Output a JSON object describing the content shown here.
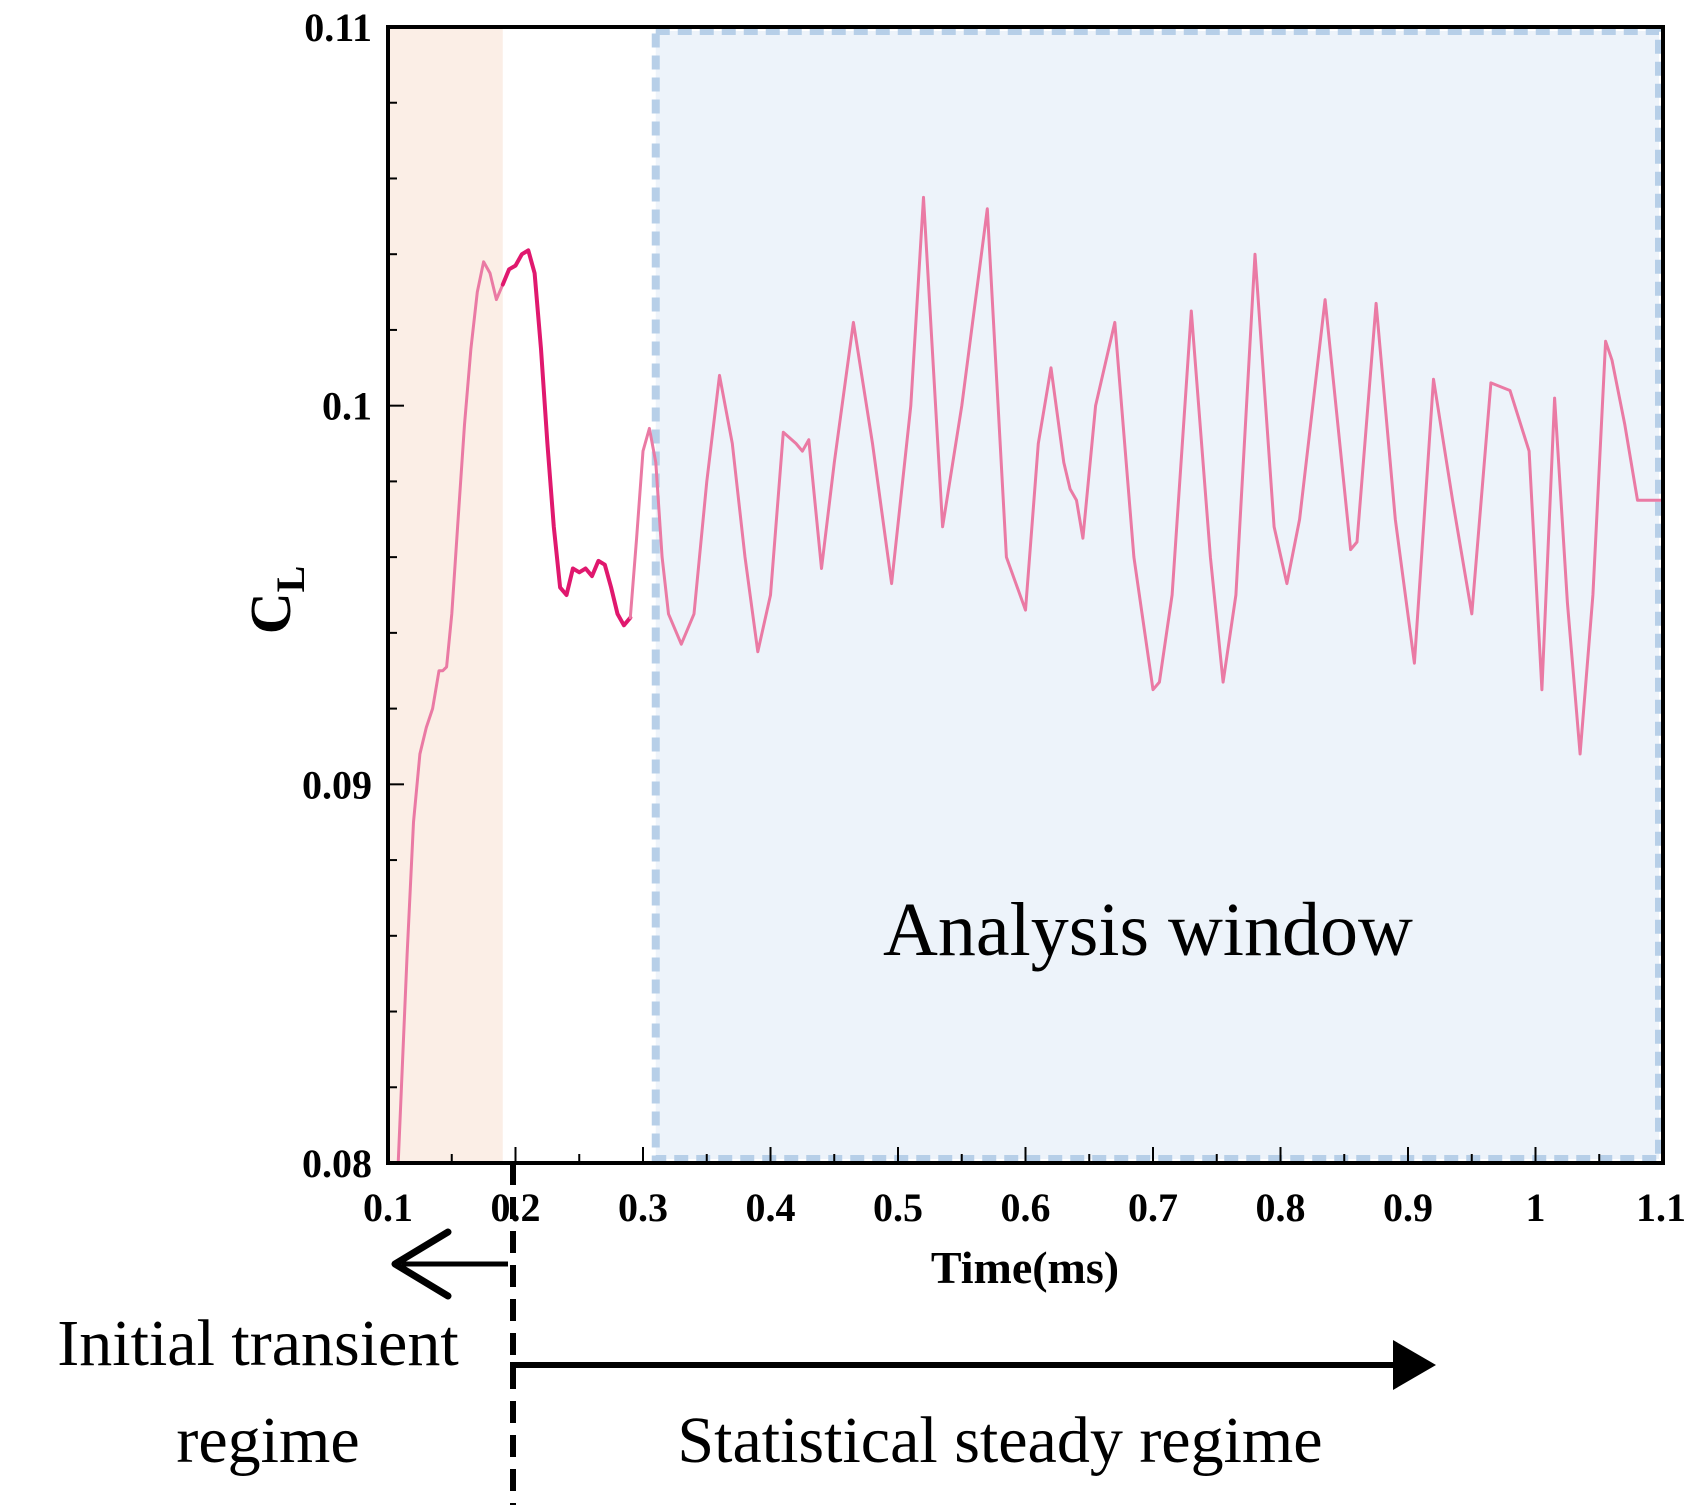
{
  "chart_data": {
    "type": "line",
    "xlabel": "Time(ms)",
    "ylabel": "C",
    "ylabel_subscript": "L",
    "xlim": [
      0.1,
      1.1
    ],
    "ylim": [
      0.08,
      0.11
    ],
    "x_ticks": [
      "0.1",
      "0.2",
      "0.3",
      "0.4",
      "0.5",
      "0.6",
      "0.7",
      "0.8",
      "0.9",
      "1",
      "1.1"
    ],
    "y_ticks": [
      "0.08",
      "0.09",
      "0.1",
      "0.11"
    ],
    "grid": false,
    "colors": {
      "line_light": "#ea7aa4",
      "line_dark": "#e0186e",
      "transient_band": "#fbeee6",
      "analysis_band": "#edf3fa",
      "analysis_border": "#b7cfe8"
    },
    "regions": [
      {
        "name": "initial-transient",
        "x": [
          0.1,
          0.19
        ]
      },
      {
        "name": "analysis-window",
        "x": [
          0.31,
          1.1
        ],
        "label": "Analysis window"
      }
    ],
    "annotations": {
      "split_x": 0.2,
      "left_label_line1": "Initial transient",
      "left_label_line2": "regime",
      "right_label": "Statistical steady regime"
    },
    "series": [
      {
        "x": [
          0.108,
          0.115,
          0.12,
          0.125,
          0.13,
          0.135,
          0.14,
          0.143,
          0.146,
          0.15,
          0.155,
          0.16,
          0.165,
          0.17,
          0.175,
          0.18,
          0.185,
          0.19
        ],
        "y": [
          0.08,
          0.0855,
          0.089,
          0.0908,
          0.0915,
          0.092,
          0.093,
          0.093,
          0.0931,
          0.0945,
          0.097,
          0.0995,
          0.1015,
          0.103,
          0.1038,
          0.1035,
          0.1028,
          0.1032
        ]
      },
      {
        "x": [
          0.19,
          0.195,
          0.2,
          0.205,
          0.21,
          0.215,
          0.22,
          0.225,
          0.23,
          0.235,
          0.24,
          0.245,
          0.25,
          0.255,
          0.26,
          0.265,
          0.27,
          0.275,
          0.28,
          0.285,
          0.29
        ],
        "y": [
          0.1032,
          0.1036,
          0.1037,
          0.104,
          0.1041,
          0.1035,
          0.1015,
          0.099,
          0.0968,
          0.0952,
          0.095,
          0.0957,
          0.0956,
          0.0957,
          0.0955,
          0.0959,
          0.0958,
          0.0952,
          0.0945,
          0.0942,
          0.0944
        ]
      },
      {
        "x": [
          0.29,
          0.295,
          0.3,
          0.305,
          0.31,
          0.315,
          0.32,
          0.33,
          0.34,
          0.35,
          0.36,
          0.37,
          0.38,
          0.39,
          0.4,
          0.41,
          0.42,
          0.425,
          0.43,
          0.44,
          0.45,
          0.465,
          0.48,
          0.495,
          0.51,
          0.52,
          0.535,
          0.55,
          0.57,
          0.585,
          0.6,
          0.61,
          0.62,
          0.63,
          0.635,
          0.64,
          0.645,
          0.655,
          0.67,
          0.685,
          0.7,
          0.705,
          0.715,
          0.73,
          0.745,
          0.755,
          0.765,
          0.78,
          0.795,
          0.805,
          0.815,
          0.835,
          0.855,
          0.86,
          0.875,
          0.89,
          0.905,
          0.92,
          0.935,
          0.95,
          0.965,
          0.98,
          0.995,
          1.005,
          1.015,
          1.025,
          1.035,
          1.045,
          1.055,
          1.06,
          1.07,
          1.08,
          1.09,
          1.1
        ],
        "y": [
          0.0944,
          0.0965,
          0.0988,
          0.0994,
          0.0985,
          0.096,
          0.0945,
          0.0937,
          0.0945,
          0.098,
          0.1008,
          0.099,
          0.096,
          0.0935,
          0.095,
          0.0993,
          0.099,
          0.0988,
          0.0991,
          0.0957,
          0.0985,
          0.1022,
          0.099,
          0.0953,
          0.1,
          0.1055,
          0.0968,
          0.1,
          0.1052,
          0.096,
          0.0946,
          0.099,
          0.101,
          0.0985,
          0.0978,
          0.0975,
          0.0965,
          0.1,
          0.1022,
          0.096,
          0.0925,
          0.0927,
          0.095,
          0.1025,
          0.096,
          0.0927,
          0.095,
          0.104,
          0.0968,
          0.0953,
          0.097,
          0.1028,
          0.0962,
          0.0964,
          0.1027,
          0.097,
          0.0932,
          0.1007,
          0.0975,
          0.0945,
          0.1006,
          0.1004,
          0.0988,
          0.0925,
          0.1002,
          0.0948,
          0.0908,
          0.095,
          0.1017,
          0.1012,
          0.0995,
          0.0975,
          0.0975,
          0.0975
        ]
      }
    ]
  }
}
